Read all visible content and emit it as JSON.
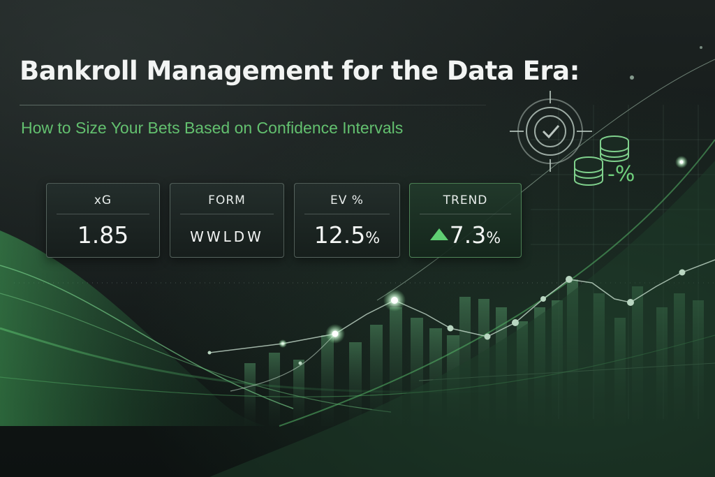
{
  "headline": "Bankroll Management for the Data Era:",
  "subtitle": "How to Size Your Bets Based on Confidence Intervals",
  "kpis": {
    "xg": {
      "label": "xG",
      "value": "1.85"
    },
    "form": {
      "label": "FORM",
      "value": "WWLDW"
    },
    "ev": {
      "label": "EV %",
      "value": "12.5",
      "unit": "%"
    },
    "trend": {
      "label": "TREND",
      "value": "7.3",
      "unit": "%",
      "direction": "up"
    }
  },
  "decor": {
    "percent_symbol": "-%",
    "icons": [
      "target-check-icon",
      "coin-stack-icon",
      "percent-icon"
    ]
  },
  "colors": {
    "accent_green": "#63c06f",
    "bright_green": "#5fcf73",
    "background": "#121817"
  }
}
